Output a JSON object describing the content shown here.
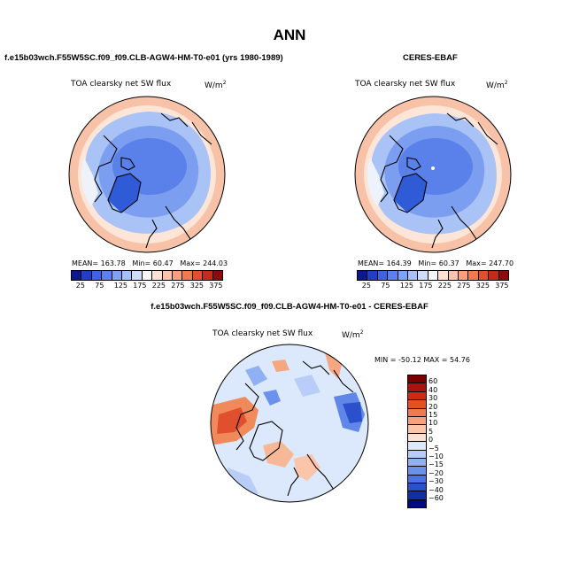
{
  "title": "ANN",
  "panels": [
    {
      "case_label": "f.e15b03wch.F55W5SC.f09_f09.CLB-AGW4-HM-T0-e01 (yrs 1980-1989)",
      "field_label": "TOA clearsky net SW flux",
      "units_base": "W/m",
      "units_exp": "2",
      "stats": {
        "mean_label": "MEAN=",
        "mean": "163.78",
        "min_label": "Min=",
        "min": "60.47",
        "max_label": "Max=",
        "max": "244.03"
      }
    },
    {
      "case_label": "CERES-EBAF",
      "field_label": "TOA clearsky net SW flux",
      "units_base": "W/m",
      "units_exp": "2",
      "stats": {
        "mean_label": "MEAN=",
        "mean": "164.39",
        "min_label": "Min=",
        "min": "60.37",
        "max_label": "Max=",
        "max": "247.70"
      }
    }
  ],
  "diff_panel": {
    "case_label": "f.e15b03wch.F55W5SC.f09_f09.CLB-AGW4-HM-T0-e01 - CERES-EBAF",
    "field_label": "TOA clearsky net SW flux",
    "units_base": "W/m",
    "units_exp": "2",
    "minmax": "MIN = -50.12 MAX =  54.76"
  },
  "abs_colorbar": {
    "labels": [
      "25",
      "75",
      "125",
      "175",
      "225",
      "275",
      "325",
      "375"
    ],
    "colors": [
      "#0a1a8c",
      "#1f3fc4",
      "#3a64e0",
      "#5a82ee",
      "#7ea2f4",
      "#a6c0f8",
      "#cfdcfb",
      "#f6f6f6",
      "#fde2d2",
      "#fcc4a8",
      "#f8a07a",
      "#f07a50",
      "#e0502e",
      "#c22c18",
      "#8c0a0a"
    ]
  },
  "diff_colorbar": {
    "labels": [
      "60",
      "40",
      "30",
      "20",
      "15",
      "10",
      "5",
      "0",
      "−5",
      "−10",
      "−15",
      "−20",
      "−30",
      "−40",
      "−60"
    ],
    "colors": [
      "#7a0000",
      "#b01010",
      "#d02a14",
      "#e8501e",
      "#f07a50",
      "#f8a07a",
      "#fcc4a8",
      "#fde2d2",
      "#dce8fb",
      "#b8cdf8",
      "#8fb0f2",
      "#6a92ec",
      "#4a72e2",
      "#2a50cc",
      "#1030a8",
      "#000a80"
    ]
  },
  "map_colors": {
    "ocean_ring_outer": "#f7c2a8",
    "ocean_ring_mid": "#fbd9c6",
    "subpolar": "#a9c3f6",
    "polar": "#7c9ef0",
    "arctic_core": "#5a80ea",
    "greenland": "#2f5cd6",
    "diff_base": "#dce8fb",
    "diff_pos": "#f5a782",
    "diff_neg": "#5f86e8"
  }
}
